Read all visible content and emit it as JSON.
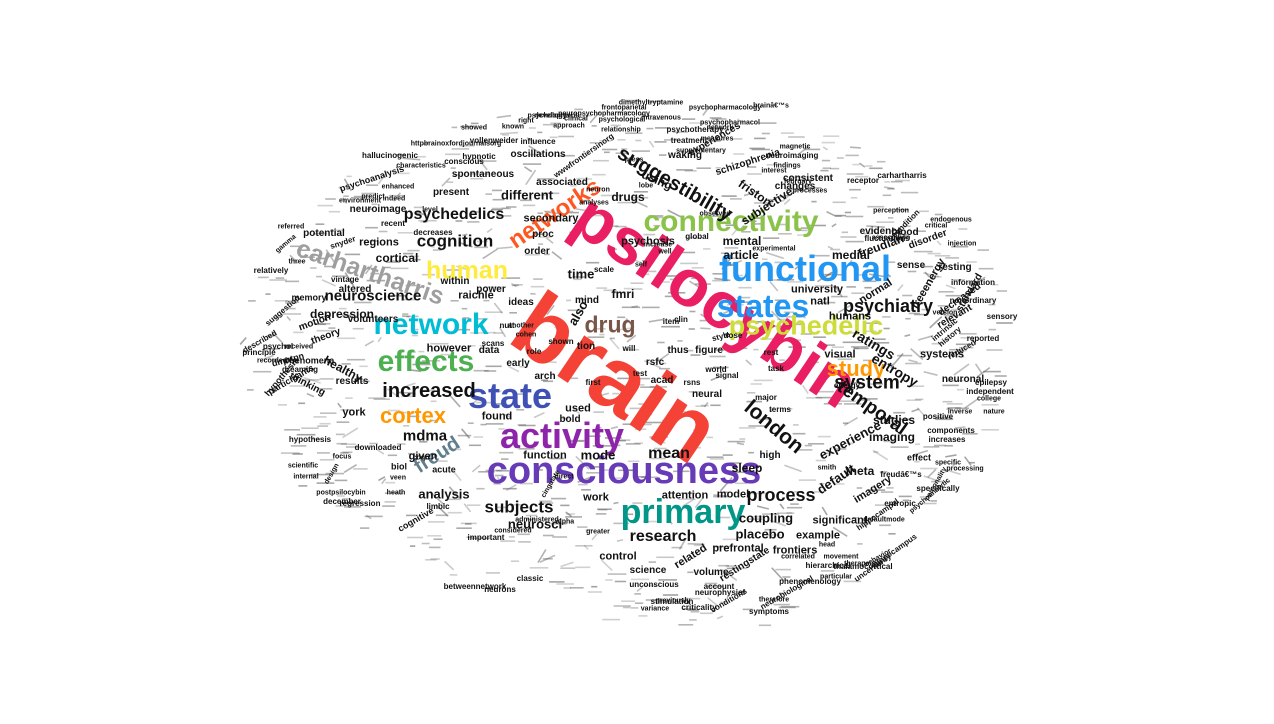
{
  "colors": {
    "red": "#f44336",
    "pink": "#e91e63",
    "purple": "#8e24aa",
    "deep_purple": "#673ab7",
    "indigo": "#3f51b5",
    "blue": "#2196f3",
    "cyan": "#00bcd4",
    "teal": "#009688",
    "green": "#4caf50",
    "light_green": "#8bc34a",
    "lime": "#cddc39",
    "yellow": "#ffeb3b",
    "orange": "#ff9800",
    "deep_orange": "#ff5722",
    "brown": "#795548",
    "grey": "#9e9e9e",
    "blue_grey": "#607d8b",
    "black": "#111111"
  },
  "words": [
    {
      "text": "brain",
      "color": "red"
    },
    {
      "text": "psilocybin",
      "color": "pink"
    },
    {
      "text": "consciousness",
      "color": "deep_purple"
    },
    {
      "text": "activity",
      "color": "purple"
    },
    {
      "text": "state",
      "color": "indigo"
    },
    {
      "text": "primary",
      "color": "teal"
    },
    {
      "text": "functional",
      "color": "blue"
    },
    {
      "text": "states",
      "color": "blue"
    },
    {
      "text": "connectivity",
      "color": "light_green"
    },
    {
      "text": "psychedelic",
      "color": "lime"
    },
    {
      "text": "network",
      "color": "cyan"
    },
    {
      "text": "effects",
      "color": "green"
    },
    {
      "text": "human",
      "color": "yellow"
    },
    {
      "text": "carhartharris",
      "color": "grey"
    },
    {
      "text": "networks",
      "color": "deep_orange"
    },
    {
      "text": "drug",
      "color": "brown"
    },
    {
      "text": "cortex",
      "color": "orange"
    },
    {
      "text": "study",
      "color": "orange"
    },
    {
      "text": "freud",
      "color": "blue_grey"
    },
    {
      "text": "london",
      "color": "black"
    },
    {
      "text": "increased",
      "color": "black"
    },
    {
      "text": "suggestibility",
      "color": "black"
    },
    {
      "text": "temporal",
      "color": "black"
    },
    {
      "text": "system",
      "color": "black"
    },
    {
      "text": "psychiatry",
      "color": "black"
    },
    {
      "text": "process",
      "color": "black"
    },
    {
      "text": "subjects",
      "color": "black"
    },
    {
      "text": "research",
      "color": "black"
    },
    {
      "text": "cognition",
      "color": "black"
    },
    {
      "text": "psychedelics",
      "color": "black"
    },
    {
      "text": "neuroscience",
      "color": "black"
    },
    {
      "text": "mdma",
      "color": "black"
    },
    {
      "text": "mean",
      "color": "black"
    },
    {
      "text": "ratings",
      "color": "black"
    },
    {
      "text": "entropy",
      "color": "black"
    },
    {
      "text": "experience",
      "color": "black"
    },
    {
      "text": "default",
      "color": "black"
    },
    {
      "text": "neurosci",
      "color": "black"
    },
    {
      "text": "coupling",
      "color": "black"
    },
    {
      "text": "placebo",
      "color": "black"
    },
    {
      "text": "analysis",
      "color": "black"
    },
    {
      "text": "also",
      "color": "black"
    },
    {
      "text": "time",
      "color": "black"
    },
    {
      "text": "different",
      "color": "black"
    },
    {
      "text": "mode",
      "color": "black"
    },
    {
      "text": "studies",
      "color": "black"
    },
    {
      "text": "using",
      "color": "black"
    },
    {
      "text": "drugs",
      "color": "black"
    },
    {
      "text": "friston",
      "color": "black"
    },
    {
      "text": "article",
      "color": "black"
    },
    {
      "text": "medial",
      "color": "black"
    },
    {
      "text": "mental",
      "color": "black"
    },
    {
      "text": "subjective",
      "color": "black"
    },
    {
      "text": "freudian",
      "color": "black"
    },
    {
      "text": "imaging",
      "color": "black"
    },
    {
      "text": "theta",
      "color": "black"
    },
    {
      "text": "sleep",
      "color": "black"
    },
    {
      "text": "fmri",
      "color": "black"
    },
    {
      "text": "cortical",
      "color": "black"
    },
    {
      "text": "regions",
      "color": "black"
    },
    {
      "text": "depression",
      "color": "black"
    },
    {
      "text": "healthy",
      "color": "black"
    },
    {
      "text": "however",
      "color": "black"
    },
    {
      "text": "raichle",
      "color": "black"
    },
    {
      "text": "york",
      "color": "black"
    },
    {
      "text": "given",
      "color": "black"
    },
    {
      "text": "function",
      "color": "black"
    },
    {
      "text": "found",
      "color": "black"
    },
    {
      "text": "used",
      "color": "black"
    },
    {
      "text": "work",
      "color": "black"
    },
    {
      "text": "attention",
      "color": "black"
    },
    {
      "text": "model",
      "color": "black"
    },
    {
      "text": "control",
      "color": "black"
    },
    {
      "text": "related",
      "color": "black"
    },
    {
      "text": "prefrontal",
      "color": "black"
    },
    {
      "text": "frontiers",
      "color": "black"
    },
    {
      "text": "example",
      "color": "black"
    },
    {
      "text": "significant",
      "color": "black"
    },
    {
      "text": "imagery",
      "color": "black"
    },
    {
      "text": "visual",
      "color": "black"
    },
    {
      "text": "systems",
      "color": "black"
    },
    {
      "text": "normal",
      "color": "black"
    },
    {
      "text": "humans",
      "color": "black"
    },
    {
      "text": "university",
      "color": "black"
    },
    {
      "text": "natl",
      "color": "black"
    },
    {
      "text": "freeenergy",
      "color": "black"
    },
    {
      "text": "psychosis",
      "color": "black"
    },
    {
      "text": "secondary",
      "color": "black"
    },
    {
      "text": "spontaneous",
      "color": "black"
    },
    {
      "text": "oscillations",
      "color": "black"
    },
    {
      "text": "waking",
      "color": "black"
    },
    {
      "text": "schizophrenia",
      "color": "black"
    },
    {
      "text": "experiences",
      "color": "black"
    },
    {
      "text": "consistent",
      "color": "black"
    },
    {
      "text": "changes",
      "color": "black"
    },
    {
      "text": "evidence",
      "color": "black"
    },
    {
      "text": "resting",
      "color": "black"
    },
    {
      "text": "sense",
      "color": "black"
    },
    {
      "text": "disorder",
      "color": "black"
    },
    {
      "text": "decreased",
      "color": "black"
    },
    {
      "text": "relevant",
      "color": "black"
    },
    {
      "text": "neuronal",
      "color": "black"
    },
    {
      "text": "high",
      "color": "black"
    },
    {
      "text": "neural",
      "color": "black"
    },
    {
      "text": "volume",
      "color": "black"
    },
    {
      "text": "science",
      "color": "black"
    },
    {
      "text": "restingstate",
      "color": "black"
    },
    {
      "text": "rsfc",
      "color": "black"
    },
    {
      "text": "thus",
      "color": "black"
    },
    {
      "text": "figure",
      "color": "black"
    },
    {
      "text": "proc",
      "color": "black"
    },
    {
      "text": "acad",
      "color": "black"
    },
    {
      "text": "present",
      "color": "black"
    },
    {
      "text": "associated",
      "color": "black"
    },
    {
      "text": "neuroimage",
      "color": "black"
    },
    {
      "text": "within",
      "color": "black"
    },
    {
      "text": "volunteers",
      "color": "black"
    },
    {
      "text": "thinking",
      "color": "black"
    },
    {
      "text": "theory",
      "color": "black"
    },
    {
      "text": "motion",
      "color": "black"
    },
    {
      "text": "results",
      "color": "black"
    },
    {
      "text": "potential",
      "color": "black"
    },
    {
      "text": "altered",
      "color": "black"
    },
    {
      "text": "standard",
      "color": "black"
    },
    {
      "text": "blood",
      "color": "black"
    },
    {
      "text": "mind",
      "color": "black"
    },
    {
      "text": "early",
      "color": "black"
    },
    {
      "text": "arch",
      "color": "black"
    },
    {
      "text": "bold",
      "color": "black"
    },
    {
      "text": "data",
      "color": "black"
    },
    {
      "text": "tion",
      "color": "black"
    },
    {
      "text": "ideas",
      "color": "black"
    },
    {
      "text": "power",
      "color": "black"
    },
    {
      "text": "order",
      "color": "black"
    },
    {
      "text": "memory",
      "color": "black"
    },
    {
      "text": "phenomena",
      "color": "black"
    },
    {
      "text": "participants",
      "color": "black"
    },
    {
      "text": "dmntpn",
      "color": "black"
    },
    {
      "text": "biol",
      "color": "black"
    },
    {
      "text": "acute",
      "color": "black"
    },
    {
      "text": "cognitive",
      "color": "black"
    },
    {
      "text": "hypothesis",
      "color": "black"
    },
    {
      "text": "psychoanalysis",
      "color": "black"
    },
    {
      "text": "hallucinogenic",
      "color": "black"
    },
    {
      "text": "hypnotic",
      "color": "black"
    },
    {
      "text": "snyder",
      "color": "black"
    },
    {
      "text": "vollenweider",
      "color": "black"
    },
    {
      "text": "influence",
      "color": "black"
    },
    {
      "text": "conscious",
      "color": "black"
    },
    {
      "text": "important",
      "color": "black"
    },
    {
      "text": "decreases",
      "color": "black"
    },
    {
      "text": "wwwfrontiersinorg",
      "color": "black"
    },
    {
      "text": "httpbrainoxfordjournalsorg",
      "color": "black"
    },
    {
      "text": "neuropsychopharmacology",
      "color": "black"
    },
    {
      "text": "psychotherapy",
      "color": "black"
    },
    {
      "text": "psychopharmacology",
      "color": "black"
    },
    {
      "text": "psychopharmacol",
      "color": "black"
    },
    {
      "text": "treatment",
      "color": "black"
    },
    {
      "text": "neuroimaging",
      "color": "black"
    },
    {
      "text": "fluctuations",
      "color": "black"
    },
    {
      "text": "receptor",
      "color": "black"
    },
    {
      "text": "carhartharris",
      "color": "black"
    },
    {
      "text": "effect",
      "color": "black"
    },
    {
      "text": "increases",
      "color": "black"
    },
    {
      "text": "epilepsy",
      "color": "black"
    },
    {
      "text": "independent",
      "color": "black"
    },
    {
      "text": "positive",
      "color": "black"
    },
    {
      "text": "components",
      "color": "black"
    },
    {
      "text": "specifically",
      "color": "black"
    },
    {
      "text": "entropic",
      "color": "black"
    },
    {
      "text": "hippocampal",
      "color": "black"
    },
    {
      "text": "hippocampus",
      "color": "black"
    },
    {
      "text": "thalamocortical",
      "color": "black"
    },
    {
      "text": "uncertainty",
      "color": "black"
    },
    {
      "text": "neurobiological",
      "color": "black"
    },
    {
      "text": "account",
      "color": "black"
    },
    {
      "text": "unconscious",
      "color": "black"
    },
    {
      "text": "betweennetwork",
      "color": "black"
    },
    {
      "text": "classic",
      "color": "black"
    },
    {
      "text": "neurons",
      "color": "black"
    },
    {
      "text": "limbic",
      "color": "black"
    },
    {
      "text": "downloaded",
      "color": "black"
    },
    {
      "text": "energy",
      "color": "black"
    },
    {
      "text": "major",
      "color": "black"
    },
    {
      "text": "terms",
      "color": "black"
    },
    {
      "text": "world",
      "color": "black"
    },
    {
      "text": "dose",
      "color": "black"
    },
    {
      "text": "style",
      "color": "black"
    },
    {
      "text": "signal",
      "color": "black"
    },
    {
      "text": "global",
      "color": "black"
    },
    {
      "text": "experimental",
      "color": "black"
    },
    {
      "text": "information",
      "color": "black"
    },
    {
      "text": "nonordinary",
      "color": "black"
    },
    {
      "text": "sensory",
      "color": "black"
    },
    {
      "text": "reported",
      "color": "black"
    },
    {
      "text": "intrinsic",
      "color": "black"
    },
    {
      "text": "reduced",
      "color": "black"
    },
    {
      "text": "history",
      "color": "black"
    },
    {
      "text": "condition",
      "color": "black"
    },
    {
      "text": "stimulation",
      "color": "black"
    },
    {
      "text": "criticality",
      "color": "black"
    },
    {
      "text": "conditions",
      "color": "black"
    },
    {
      "text": "previously",
      "color": "black"
    },
    {
      "text": "phenomenology",
      "color": "black"
    },
    {
      "text": "hierarchical",
      "color": "black"
    },
    {
      "text": "symptoms",
      "color": "black"
    },
    {
      "text": "psychology",
      "color": "black"
    },
    {
      "text": "supplementary",
      "color": "black"
    },
    {
      "text": "development",
      "color": "black"
    },
    {
      "text": "clinical",
      "color": "black"
    },
    {
      "text": "findings",
      "color": "black"
    },
    {
      "text": "processes",
      "color": "black"
    },
    {
      "text": "regression",
      "color": "black"
    },
    {
      "text": "december",
      "color": "black"
    },
    {
      "text": "psychol",
      "color": "black"
    },
    {
      "text": "principle",
      "color": "black"
    },
    {
      "text": "described",
      "color": "black"
    },
    {
      "text": "suggestion",
      "color": "black"
    },
    {
      "text": "dreaming",
      "color": "black"
    },
    {
      "text": "relatively",
      "color": "black"
    },
    {
      "text": "vintage",
      "color": "black"
    },
    {
      "text": "postpsilocybin",
      "color": "black"
    },
    {
      "text": "dimethyltryptamine",
      "color": "black"
    },
    {
      "text": "hypothesis",
      "color": "black"
    },
    {
      "text": "recent",
      "color": "black"
    },
    {
      "text": "scientific",
      "color": "black"
    },
    {
      "text": "internal",
      "color": "black"
    },
    {
      "text": "nutt",
      "color": "black"
    },
    {
      "text": "scans",
      "color": "black"
    },
    {
      "text": "role",
      "color": "black"
    },
    {
      "text": "shown",
      "color": "black"
    },
    {
      "text": "will",
      "color": "black"
    },
    {
      "text": "clin",
      "color": "black"
    },
    {
      "text": "item",
      "color": "black"
    },
    {
      "text": "test",
      "color": "black"
    },
    {
      "text": "rsns",
      "color": "black"
    },
    {
      "text": "rest",
      "color": "black"
    },
    {
      "text": "task",
      "color": "black"
    },
    {
      "text": "scale",
      "color": "black"
    },
    {
      "text": "cohen",
      "color": "black"
    },
    {
      "text": "first",
      "color": "black"
    },
    {
      "text": "direct",
      "color": "black"
    },
    {
      "text": "gamma",
      "color": "black"
    },
    {
      "text": "alpha",
      "color": "black"
    },
    {
      "text": "greater",
      "color": "black"
    },
    {
      "text": "another",
      "color": "black"
    },
    {
      "text": "neurophysiol",
      "color": "black"
    },
    {
      "text": "variance",
      "color": "black"
    },
    {
      "text": "network",
      "color": "black"
    },
    {
      "text": "brainâ€™s",
      "color": "black"
    },
    {
      "text": "freudâ€™s",
      "color": "black"
    },
    {
      "text": "defaultmode",
      "color": "black"
    },
    {
      "text": "psychoanalytic",
      "color": "black"
    },
    {
      "text": "personality",
      "color": "black"
    },
    {
      "text": "college",
      "color": "black"
    },
    {
      "text": "nature",
      "color": "black"
    },
    {
      "text": "specific",
      "color": "black"
    },
    {
      "text": "processing",
      "color": "black"
    },
    {
      "text": "critical",
      "color": "black"
    },
    {
      "text": "injection",
      "color": "black"
    },
    {
      "text": "february",
      "color": "black"
    },
    {
      "text": "magnetic",
      "color": "black"
    },
    {
      "text": "interest",
      "color": "black"
    },
    {
      "text": "inverse",
      "color": "black"
    },
    {
      "text": "correlated",
      "color": "black"
    },
    {
      "text": "therapeutic",
      "color": "black"
    },
    {
      "text": "behavior",
      "color": "black"
    },
    {
      "text": "particular",
      "color": "black"
    },
    {
      "text": "therefore",
      "color": "black"
    },
    {
      "text": "movement",
      "color": "black"
    },
    {
      "text": "head",
      "color": "black"
    },
    {
      "text": "smith",
      "color": "black"
    },
    {
      "text": "version",
      "color": "black"
    },
    {
      "text": "association",
      "color": "black"
    },
    {
      "text": "endogenous",
      "color": "black"
    },
    {
      "text": "perception",
      "color": "black"
    },
    {
      "text": "heath",
      "color": "black"
    },
    {
      "text": "focus",
      "color": "black"
    },
    {
      "text": "coqn",
      "color": "black"
    },
    {
      "text": "design",
      "color": "black"
    },
    {
      "text": "veen",
      "color": "black"
    },
    {
      "text": "self",
      "color": "black"
    },
    {
      "text": "well",
      "color": "black"
    },
    {
      "text": "increase",
      "color": "black"
    },
    {
      "text": "press",
      "color": "black"
    },
    {
      "text": "lobe",
      "color": "black"
    },
    {
      "text": "neuron",
      "color": "black"
    },
    {
      "text": "analyses",
      "color": "black"
    },
    {
      "text": "observed",
      "color": "black"
    },
    {
      "text": "known",
      "color": "black"
    },
    {
      "text": "showed",
      "color": "black"
    },
    {
      "text": "approach",
      "color": "black"
    },
    {
      "text": "intravenous",
      "color": "black"
    },
    {
      "text": "frontoparietal",
      "color": "black"
    },
    {
      "text": "psychological",
      "color": "black"
    },
    {
      "text": "relationship",
      "color": "black"
    },
    {
      "text": "measures",
      "color": "black"
    },
    {
      "text": "right",
      "color": "black"
    },
    {
      "text": "level",
      "color": "black"
    },
    {
      "text": "administered",
      "color": "black"
    },
    {
      "text": "considered",
      "color": "black"
    },
    {
      "text": "cingulate",
      "color": "black"
    },
    {
      "text": "predict",
      "color": "black"
    },
    {
      "text": "enhanced",
      "color": "black"
    },
    {
      "text": "characteristics",
      "color": "black"
    },
    {
      "text": "environment",
      "color": "black"
    },
    {
      "text": "indeed",
      "color": "black"
    },
    {
      "text": "referred",
      "color": "black"
    },
    {
      "text": "three",
      "color": "black"
    },
    {
      "text": "received",
      "color": "black"
    },
    {
      "text": "recorded",
      "color": "black"
    }
  ]
}
